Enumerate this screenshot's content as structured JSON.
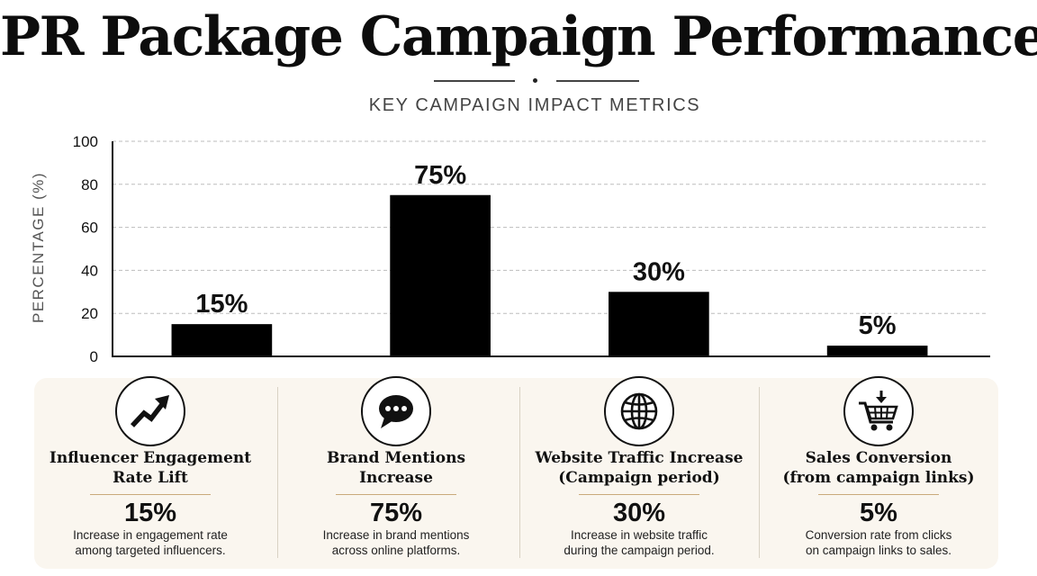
{
  "title": "PR Package Campaign Performance",
  "subtitle": "KEY CAMPAIGN IMPACT METRICS",
  "chart_data": {
    "type": "bar",
    "title": "",
    "xlabel": "",
    "ylabel": "PERCENTAGE (%)",
    "ylim": [
      0,
      100
    ],
    "yticks": [
      0,
      20,
      40,
      60,
      80,
      100
    ],
    "grid": true,
    "bar_color": "#000000",
    "categories": [
      "Influencer Engagement Rate Lift",
      "Brand Mentions Increase",
      "Website Traffic Increase (Campaign period)",
      "Sales Conversion (from campaign links)"
    ],
    "values": [
      15,
      75,
      30,
      5
    ],
    "data_labels": [
      "15%",
      "75%",
      "30%",
      "5%"
    ]
  },
  "cards": [
    {
      "icon": "trend-up-arrow-icon",
      "title_lines": [
        "Influencer Engagement",
        "Rate Lift"
      ],
      "value": "15%",
      "desc_lines": [
        "Increase in engagement rate",
        "among targeted influencers."
      ]
    },
    {
      "icon": "speech-bubble-icon",
      "title_lines": [
        "Brand Mentions",
        "Increase"
      ],
      "value": "75%",
      "desc_lines": [
        "Increase in brand mentions",
        "across online platforms."
      ]
    },
    {
      "icon": "globe-icon",
      "title_lines": [
        "Website Traffic Increase",
        "(Campaign period)"
      ],
      "value": "30%",
      "desc_lines": [
        "Increase in website traffic",
        "during the campaign period."
      ]
    },
    {
      "icon": "shopping-cart-icon",
      "title_lines": [
        "Sales Conversion",
        "(from campaign links)"
      ],
      "value": "5%",
      "desc_lines": [
        "Conversion rate from clicks",
        "on campaign links to sales."
      ]
    }
  ]
}
